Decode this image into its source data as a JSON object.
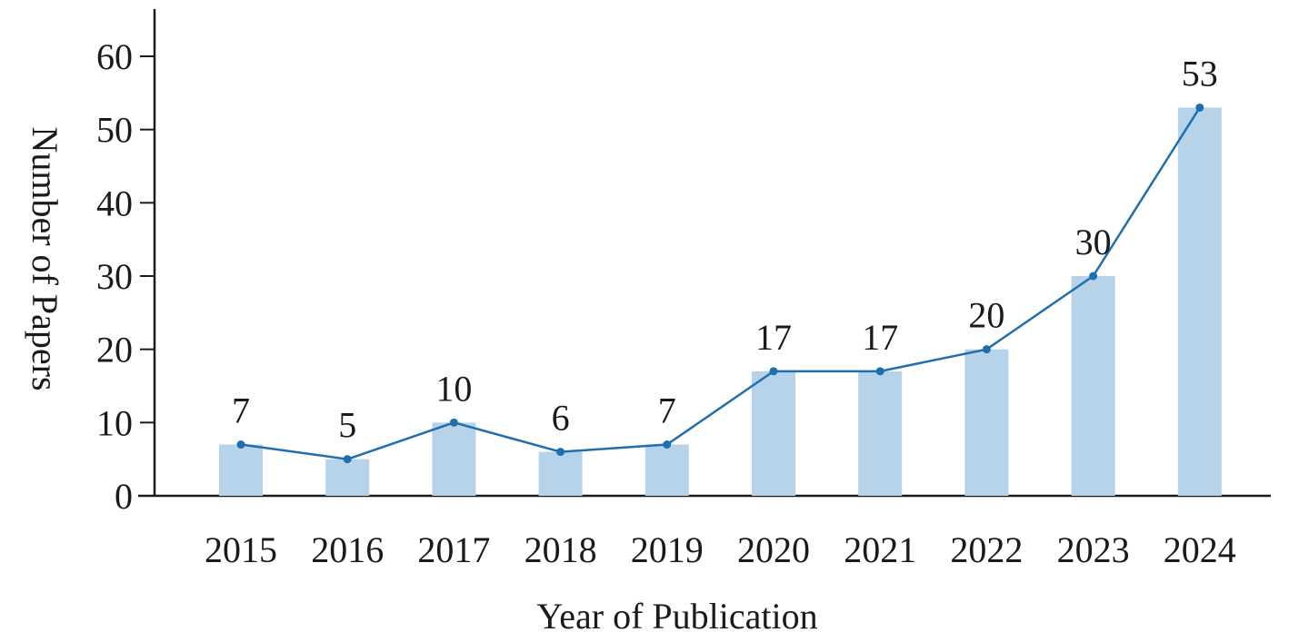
{
  "chart_data": {
    "type": "bar",
    "categories": [
      "2015",
      "2016",
      "2017",
      "2018",
      "2019",
      "2020",
      "2021",
      "2022",
      "2023",
      "2024"
    ],
    "values": [
      7,
      5,
      10,
      6,
      7,
      17,
      17,
      20,
      30,
      53
    ],
    "data_labels": [
      "7",
      "5",
      "10",
      "6",
      "7",
      "17",
      "17",
      "20",
      "30",
      "53"
    ],
    "overlay_line": true,
    "title": "",
    "xlabel": "Year of Publication",
    "ylabel": "Number of Papers",
    "ylim": [
      0,
      60
    ],
    "yticks": [
      0,
      10,
      20,
      30,
      40,
      50,
      60
    ],
    "ytick_labels": [
      "0",
      "10",
      "20",
      "30",
      "40",
      "50",
      "60"
    ],
    "grid": false,
    "legend": "none",
    "colors": {
      "bar": "#b7d3ea",
      "line": "#1f6fae",
      "axis": "#1a1a1a"
    }
  }
}
